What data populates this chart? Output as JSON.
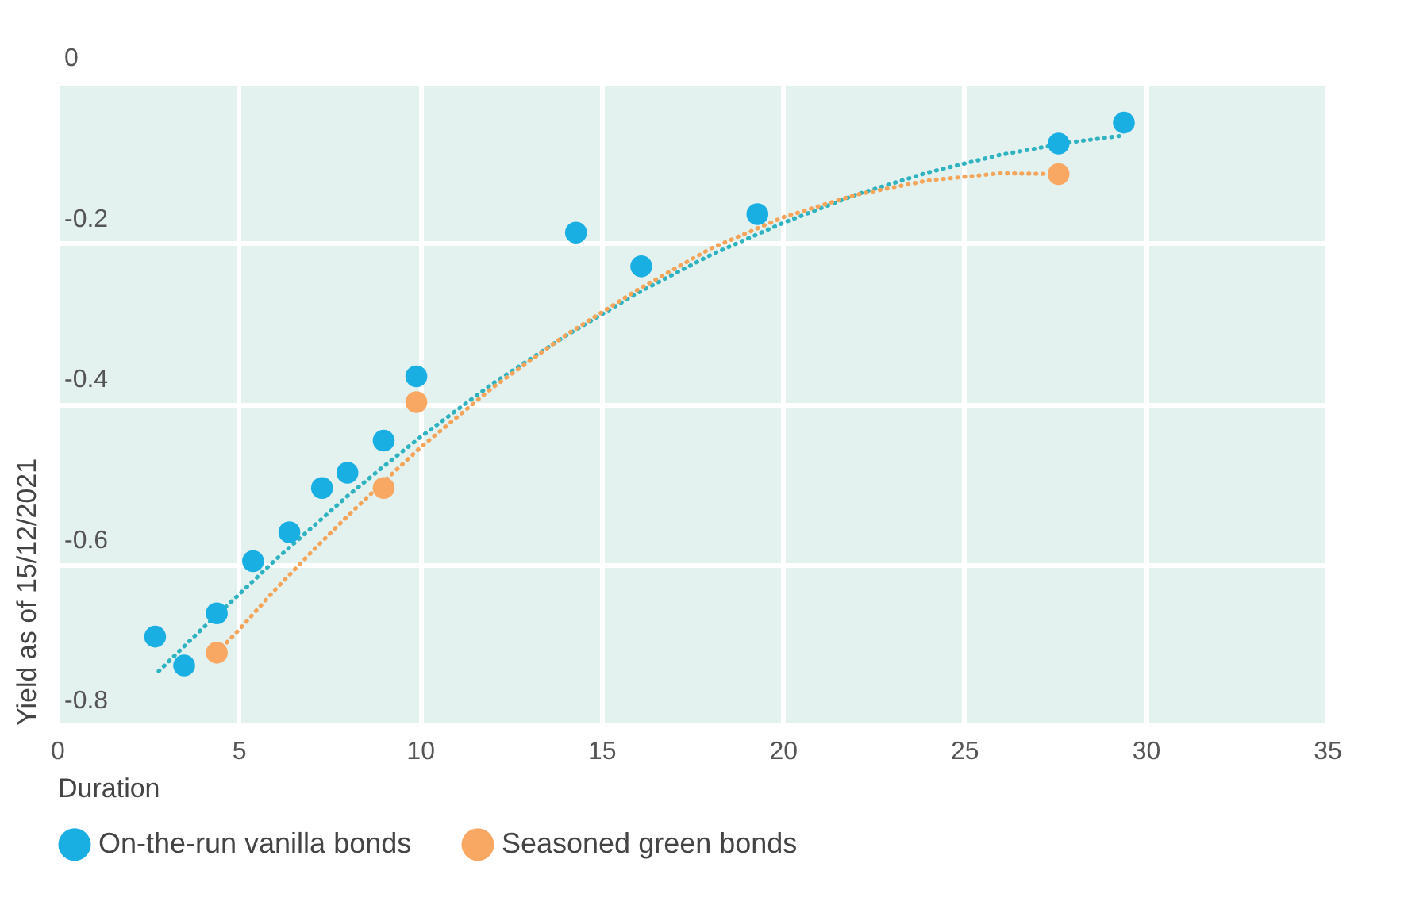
{
  "chart_data": {
    "type": "scatter",
    "xlabel": "Duration",
    "ylabel": "Yield as of 15/12/2021",
    "xlim": [
      0,
      35
    ],
    "xticks": [
      0,
      5,
      10,
      15,
      20,
      25,
      30,
      35
    ],
    "ylim": [
      -0.8,
      0
    ],
    "yticks": [
      -0.8,
      -0.6,
      -0.4,
      -0.2,
      0
    ],
    "grid": true,
    "legend": "bottom left",
    "marker": "circle",
    "series": [
      {
        "type": "line",
        "marker": "none",
        "line_style": "dotted",
        "color": "#2fb3c0",
        "x": [
          2.8,
          4,
          5,
          6,
          7,
          8,
          9,
          10,
          12,
          14,
          16,
          18,
          20,
          22,
          24,
          26,
          28,
          29.4
        ],
        "values": [
          -0.733,
          -0.68,
          -0.638,
          -0.595,
          -0.555,
          -0.515,
          -0.478,
          -0.442,
          -0.375,
          -0.316,
          -0.262,
          -0.215,
          -0.175,
          -0.14,
          -0.112,
          -0.09,
          -0.074,
          -0.066
        ]
      },
      {
        "type": "line",
        "marker": "none",
        "line_style": "dotted",
        "color": "#f5a55a",
        "x": [
          4.4,
          5,
          6,
          7,
          8,
          9,
          10,
          12,
          14,
          16,
          18,
          20,
          22,
          24,
          26,
          27.6
        ],
        "values": [
          -0.71,
          -0.682,
          -0.632,
          -0.585,
          -0.54,
          -0.497,
          -0.455,
          -0.38,
          -0.315,
          -0.258,
          -0.207,
          -0.168,
          -0.14,
          -0.122,
          -0.113,
          -0.114
        ]
      },
      {
        "name": "On-the-run vanilla bonds",
        "color": "#1aafe3",
        "x": [
          2.7,
          3.5,
          4.4,
          5.4,
          6.4,
          7.3,
          8.0,
          9.0,
          9.9,
          14.3,
          16.1,
          19.3,
          27.6,
          29.4
        ],
        "values": [
          -0.69,
          -0.726,
          -0.661,
          -0.596,
          -0.56,
          -0.505,
          -0.486,
          -0.446,
          -0.366,
          -0.187,
          -0.229,
          -0.164,
          -0.076,
          -0.05
        ]
      },
      {
        "name": "Seasoned green bonds",
        "color": "#f8a862",
        "x": [
          4.4,
          9.0,
          9.9,
          27.6
        ],
        "values": [
          -0.71,
          -0.505,
          -0.398,
          -0.114
        ]
      }
    ]
  }
}
